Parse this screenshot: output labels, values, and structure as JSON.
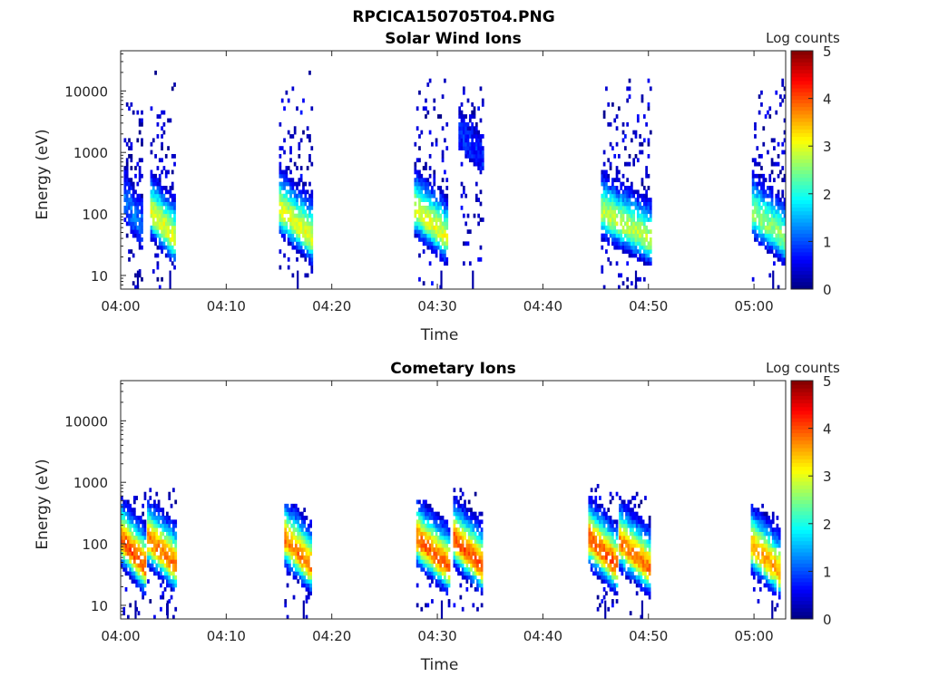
{
  "figure_title": "RPCICA150705T04.PNG",
  "chart_data": [
    {
      "type": "heatmap",
      "title": "Solar Wind Ions",
      "xlabel": "Time",
      "ylabel": "Energy (eV)",
      "colorbar_label": "Log counts",
      "x_ticks": [
        "04:00",
        "04:10",
        "04:20",
        "04:30",
        "04:40",
        "04:50",
        "05:00"
      ],
      "x_range_minutes": [
        0,
        63
      ],
      "y_ticks": [
        "10",
        "100",
        "1000",
        "10000"
      ],
      "y_scale": "log",
      "y_range": [
        6,
        45000
      ],
      "colorbar_ticks": [
        "0",
        "1",
        "2",
        "3",
        "4",
        "5"
      ],
      "colorbar_range": [
        0,
        5
      ],
      "colormap": "jet",
      "bursts": [
        {
          "t_start": 0.3,
          "t_end": 2.0,
          "peak_energy": 60,
          "peak_log_counts": 1.2,
          "high_energy_tail": 8000
        },
        {
          "t_start": 2.8,
          "t_end": 5.2,
          "peak_energy": 40,
          "peak_log_counts": 3.0,
          "high_energy_tail": 20000
        },
        {
          "t_start": 15.0,
          "t_end": 18.0,
          "peak_energy": 45,
          "peak_log_counts": 3.0,
          "high_energy_tail": 20000
        },
        {
          "t_start": 27.8,
          "t_end": 30.8,
          "peak_energy": 45,
          "peak_log_counts": 3.0,
          "high_energy_tail": 15000
        },
        {
          "t_start": 32.0,
          "t_end": 34.3,
          "peak_energy": 800,
          "peak_log_counts": 0.8,
          "high_energy_tail": 12000
        },
        {
          "t_start": 45.5,
          "t_end": 50.2,
          "peak_energy": 40,
          "peak_log_counts": 2.8,
          "high_energy_tail": 15000
        },
        {
          "t_start": 59.8,
          "t_end": 63.0,
          "peak_energy": 40,
          "peak_log_counts": 2.6,
          "high_energy_tail": 25000
        }
      ]
    },
    {
      "type": "heatmap",
      "title": "Cometary Ions",
      "xlabel": "Time",
      "ylabel": "Energy (eV)",
      "colorbar_label": "Log counts",
      "x_ticks": [
        "04:00",
        "04:10",
        "04:20",
        "04:30",
        "04:40",
        "04:50",
        "05:00"
      ],
      "x_range_minutes": [
        0,
        63
      ],
      "y_ticks": [
        "10",
        "100",
        "1000",
        "10000"
      ],
      "y_scale": "log",
      "y_range": [
        6,
        45000
      ],
      "colorbar_ticks": [
        "0",
        "1",
        "2",
        "3",
        "4",
        "5"
      ],
      "colorbar_range": [
        0,
        5
      ],
      "colormap": "jet",
      "bursts": [
        {
          "t_start": 0.0,
          "t_end": 2.2,
          "peak_energy": 45,
          "peak_log_counts": 4.0,
          "high_energy_tail": 1000
        },
        {
          "t_start": 2.5,
          "t_end": 5.3,
          "peak_energy": 45,
          "peak_log_counts": 3.8,
          "high_energy_tail": 1000
        },
        {
          "t_start": 15.5,
          "t_end": 18.0,
          "peak_energy": 45,
          "peak_log_counts": 3.8,
          "high_energy_tail": 450
        },
        {
          "t_start": 28.0,
          "t_end": 31.0,
          "peak_energy": 45,
          "peak_log_counts": 3.9,
          "high_energy_tail": 500
        },
        {
          "t_start": 31.5,
          "t_end": 34.2,
          "peak_energy": 45,
          "peak_log_counts": 4.0,
          "high_energy_tail": 800
        },
        {
          "t_start": 44.3,
          "t_end": 47.0,
          "peak_energy": 45,
          "peak_log_counts": 4.0,
          "high_energy_tail": 900
        },
        {
          "t_start": 47.2,
          "t_end": 50.2,
          "peak_energy": 40,
          "peak_log_counts": 3.8,
          "high_energy_tail": 800
        },
        {
          "t_start": 59.7,
          "t_end": 62.5,
          "peak_energy": 35,
          "peak_log_counts": 3.6,
          "high_energy_tail": 600
        }
      ]
    }
  ]
}
